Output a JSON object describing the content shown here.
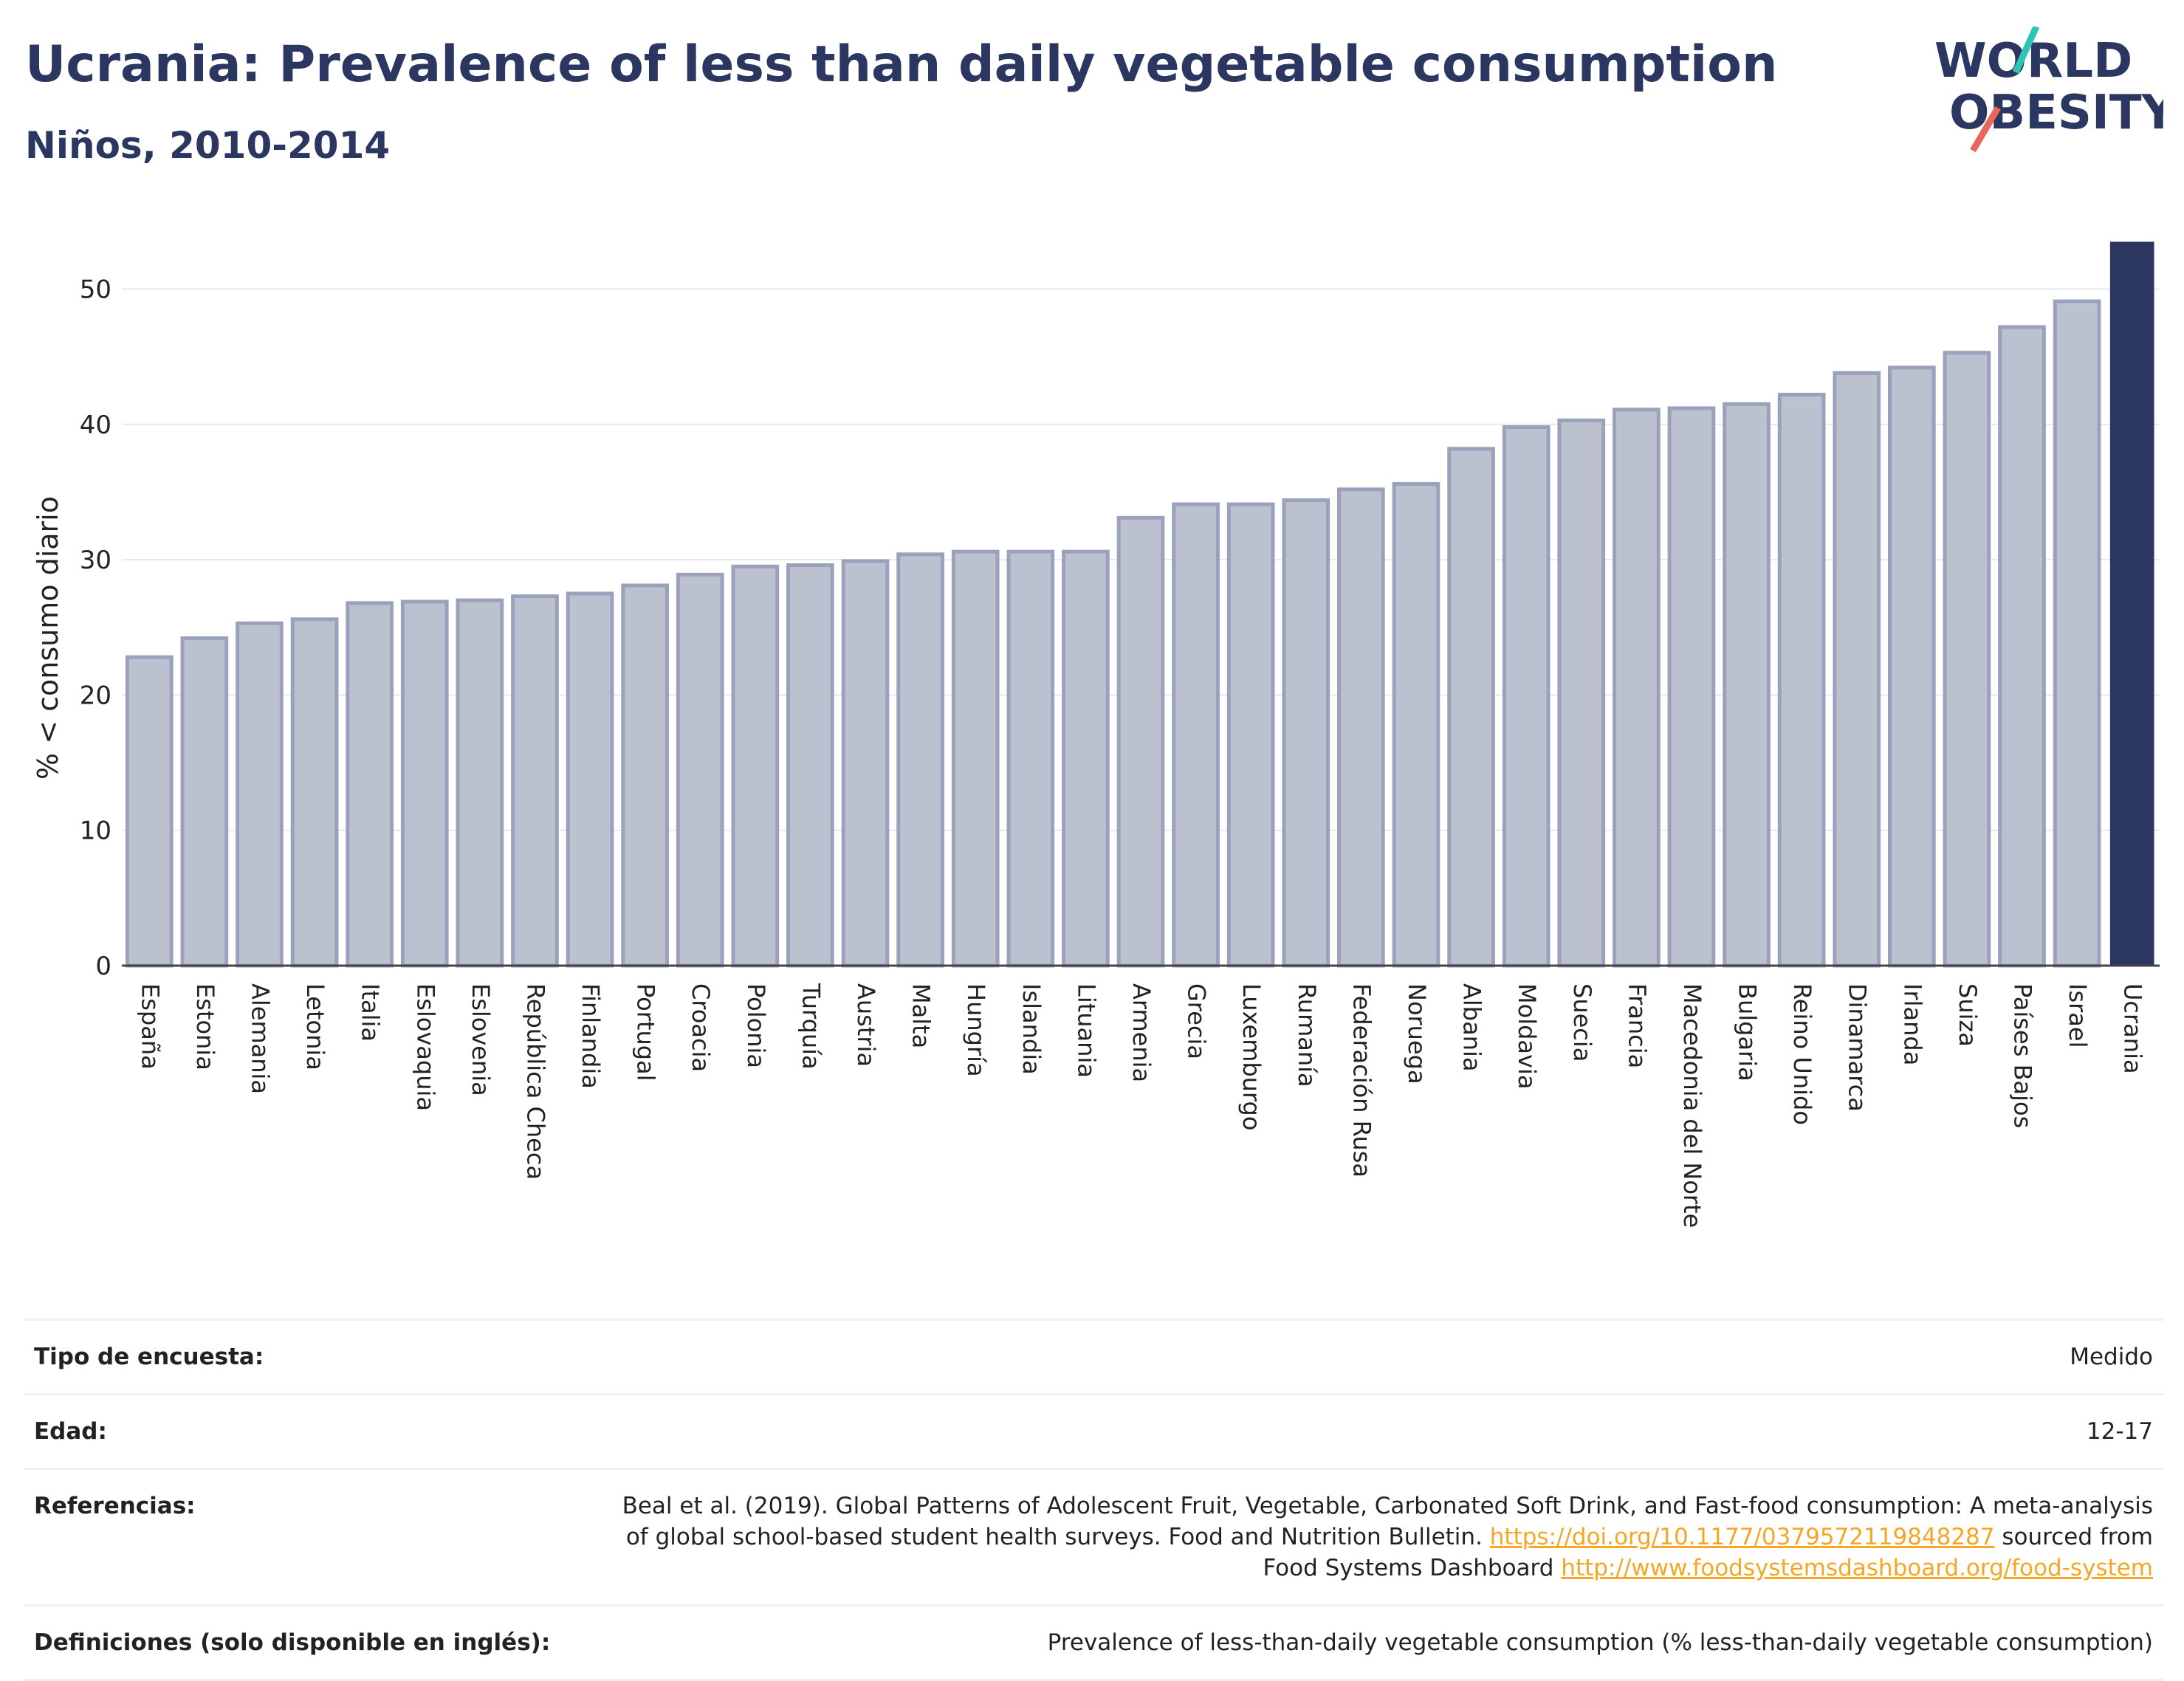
{
  "header": {
    "title": "Ucrania: Prevalence of less than daily vegetable consumption",
    "subtitle": "Niños, 2010-2014"
  },
  "logo": {
    "line1": "WORLD",
    "line2": "OBESITY",
    "accent_teal": "#2ec4b6",
    "accent_coral": "#e8675a",
    "text_color": "#2b3661"
  },
  "colors": {
    "bar_fill": "#bcc1d0",
    "bar_stroke": "#9aa1bb",
    "highlight": "#2b3661",
    "grid": "#e6e8ef"
  },
  "chart_data": {
    "type": "bar",
    "ylabel": "% < consumo diario",
    "ylim": [
      0,
      55
    ],
    "yticks": [
      0,
      10,
      20,
      30,
      40,
      50
    ],
    "grid": true,
    "highlight": "Ucrania",
    "categories": [
      "España",
      "Estonia",
      "Alemania",
      "Letonia",
      "Italia",
      "Eslovaquia",
      "Eslovenia",
      "República Checa",
      "Finlandia",
      "Portugal",
      "Croacia",
      "Polonia",
      "Turquía",
      "Austria",
      "Malta",
      "Hungría",
      "Islandia",
      "Lituania",
      "Armenia",
      "Grecia",
      "Luxemburgo",
      "Rumanía",
      "Federación Rusa",
      "Noruega",
      "Albania",
      "Moldavia",
      "Suecia",
      "Francia",
      "Macedonia del Norte",
      "Bulgaria",
      "Reino Unido",
      "Dinamarca",
      "Irlanda",
      "Suiza",
      "Países Bajos",
      "Israel",
      "Ucrania"
    ],
    "values": [
      22.8,
      24.2,
      25.3,
      25.6,
      26.8,
      26.9,
      27.0,
      27.3,
      27.5,
      28.1,
      28.9,
      29.5,
      29.6,
      29.9,
      30.4,
      30.6,
      30.6,
      30.6,
      33.1,
      34.1,
      34.1,
      34.4,
      35.2,
      35.6,
      38.2,
      39.8,
      40.3,
      41.1,
      41.2,
      41.5,
      42.2,
      43.8,
      44.2,
      45.3,
      47.2,
      49.1,
      53.5
    ]
  },
  "info_table": [
    {
      "key": "Tipo de encuesta:",
      "value": "Medido"
    },
    {
      "key": "Edad:",
      "value": "12-17"
    },
    {
      "key": "Referencias:",
      "value_line1": "Beal et al. (2019). Global Patterns of Adolescent Fruit, Vegetable, Carbonated Soft Drink, and Fast-food consumption: A meta-analysis",
      "value_line2": "of global school-based student health surveys. Food and Nutrition Bulletin.",
      "link1": "https://doi.org/10.1177/0379572119848287",
      "mid_text": "sourced from",
      "value_line3": "Food Systems Dashboard",
      "link2": "http://www.foodsystemsdashboard.org/food-system"
    },
    {
      "key": "Definiciones (solo disponible en inglés):",
      "value": "Prevalence of less-than-daily vegetable consumption (% less-than-daily vegetable consumption)"
    }
  ]
}
